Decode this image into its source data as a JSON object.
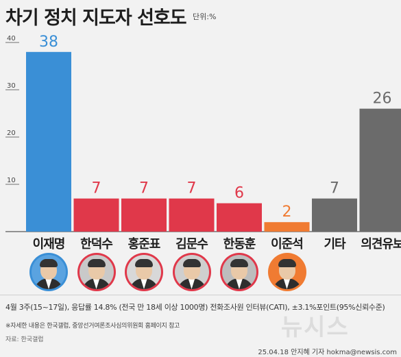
{
  "title": "차기 정치 지도자 선호도",
  "unit": "단위:%",
  "chart_data": {
    "type": "bar",
    "categories": [
      "이재명",
      "한덕수",
      "홍준표",
      "김문수",
      "한동훈",
      "이준석",
      "기타",
      "의견유보"
    ],
    "values": [
      38,
      7,
      7,
      7,
      6,
      2,
      7,
      26
    ],
    "colors": [
      "#3a8fd6",
      "#e0384a",
      "#e0384a",
      "#e0384a",
      "#e0384a",
      "#f07b32",
      "#6b6b6b",
      "#6b6b6b"
    ],
    "label_colors": [
      "#3a8fd6",
      "#e0384a",
      "#e0384a",
      "#e0384a",
      "#e0384a",
      "#f07b32",
      "#6b6b6b",
      "#6b6b6b"
    ],
    "yticks": [
      10,
      20,
      30,
      40
    ],
    "ylim": [
      0,
      40
    ],
    "grid": false
  },
  "photos": [
    {
      "name": "이재명",
      "ring": "#3a8fd6",
      "bg": "#5aa3e0"
    },
    {
      "name": "한덕수",
      "ring": "#e0384a",
      "bg": "#c9c9c9"
    },
    {
      "name": "홍준표",
      "ring": "#e0384a",
      "bg": "#d8d8d8"
    },
    {
      "name": "김문수",
      "ring": "#e0384a",
      "bg": "#cfcfcf"
    },
    {
      "name": "한동훈",
      "ring": "#e0384a",
      "bg": "#bdbdbd"
    },
    {
      "name": "이준석",
      "ring": "#f07b32",
      "bg": "#f07b32"
    }
  ],
  "footnote": "4월 3주(15~17일), 응답률 14.8% (전국 만 18세 이상 1000명) 전화조사원 인터뷰(CATI), ±3.1%포인트(95%신뢰수준)",
  "note": "※자세한 내용은 한국갤럽, 중앙선거여론조사심의위원회 홈페이지 참고",
  "source": "자료: 한국갤럽",
  "watermark": "뉴시스",
  "credit": "25.04.18 안지혜 기자 hokma@newsis.com"
}
